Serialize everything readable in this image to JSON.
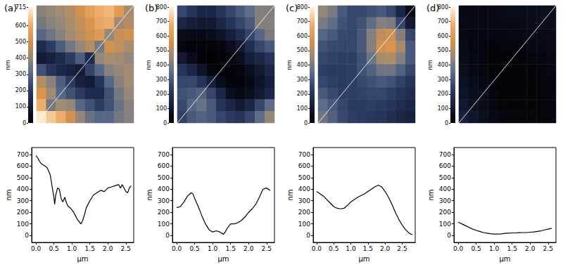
{
  "chart_data": [
    {
      "type": "heatmap",
      "title": "(a)",
      "tick_labels": false,
      "colorbar": {
        "label": "nm",
        "range": [
          0,
          715
        ],
        "ticks": [
          0,
          100,
          200,
          300,
          400,
          500,
          600,
          715
        ]
      },
      "cells": [
        [
          380,
          400,
          420,
          450,
          500,
          560,
          600,
          620,
          540,
          430
        ],
        [
          350,
          380,
          400,
          430,
          470,
          520,
          580,
          600,
          420,
          450
        ],
        [
          300,
          340,
          380,
          420,
          460,
          500,
          540,
          400,
          480,
          500
        ],
        [
          150,
          200,
          280,
          350,
          400,
          450,
          350,
          500,
          470,
          430
        ],
        [
          100,
          120,
          150,
          200,
          280,
          150,
          400,
          430,
          420,
          400
        ],
        [
          250,
          180,
          140,
          120,
          100,
          220,
          300,
          380,
          400,
          420
        ],
        [
          450,
          380,
          280,
          200,
          120,
          100,
          180,
          300,
          380,
          420
        ],
        [
          520,
          420,
          300,
          250,
          200,
          150,
          150,
          250,
          350,
          400
        ],
        [
          600,
          350,
          420,
          400,
          300,
          250,
          200,
          250,
          330,
          380
        ],
        [
          700,
          650,
          600,
          500,
          400,
          330,
          300,
          300,
          350,
          380
        ]
      ]
    },
    {
      "type": "line",
      "xlabel": "µm",
      "ylabel": "nm",
      "color": "#000000",
      "xlim": [
        -0.12,
        2.72
      ],
      "ylim": [
        -60,
        760
      ],
      "xticks": [
        {
          "value": 0,
          "label": "0.0"
        },
        {
          "value": 0.5,
          "label": "0.5"
        },
        {
          "value": 1,
          "label": "1.0"
        },
        {
          "value": 1.5,
          "label": "1.5"
        },
        {
          "value": 2,
          "label": "2.0"
        },
        {
          "value": 2.5,
          "label": "2.5"
        }
      ],
      "yticks": [
        0,
        100,
        200,
        300,
        400,
        500,
        600,
        700
      ],
      "x": [
        0,
        0.05,
        0.1,
        0.15,
        0.2,
        0.25,
        0.3,
        0.35,
        0.4,
        0.45,
        0.5,
        0.52,
        0.55,
        0.6,
        0.65,
        0.7,
        0.75,
        0.8,
        0.85,
        0.9,
        0.95,
        1.0,
        1.05,
        1.1,
        1.15,
        1.2,
        1.25,
        1.3,
        1.35,
        1.4,
        1.5,
        1.6,
        1.7,
        1.8,
        1.9,
        2.0,
        2.1,
        2.2,
        2.3,
        2.35,
        2.4,
        2.5,
        2.55,
        2.6,
        2.65
      ],
      "values": [
        690,
        670,
        640,
        620,
        610,
        600,
        590,
        560,
        520,
        420,
        330,
        270,
        350,
        410,
        400,
        320,
        290,
        330,
        280,
        250,
        240,
        220,
        200,
        170,
        140,
        120,
        100,
        130,
        180,
        240,
        300,
        350,
        370,
        390,
        380,
        410,
        420,
        430,
        440,
        410,
        440,
        380,
        370,
        410,
        430
      ]
    },
    {
      "type": "heatmap",
      "title": "(b)",
      "tick_labels": false,
      "colorbar": {
        "label": "nm",
        "range": [
          0,
          800
        ],
        "ticks": [
          0,
          100,
          200,
          300,
          400,
          500,
          600,
          700,
          800
        ]
      },
      "cells": [
        [
          250,
          200,
          150,
          150,
          200,
          250,
          300,
          350,
          420,
          410
        ],
        [
          150,
          120,
          100,
          100,
          150,
          200,
          250,
          300,
          420,
          420
        ],
        [
          50,
          40,
          40,
          50,
          80,
          120,
          180,
          250,
          330,
          400
        ],
        [
          30,
          20,
          20,
          20,
          30,
          60,
          100,
          180,
          250,
          300
        ],
        [
          100,
          50,
          20,
          10,
          20,
          30,
          60,
          120,
          150,
          200
        ],
        [
          200,
          150,
          80,
          30,
          20,
          20,
          30,
          60,
          100,
          150
        ],
        [
          250,
          250,
          200,
          120,
          50,
          20,
          20,
          40,
          80,
          120
        ],
        [
          280,
          300,
          320,
          250,
          150,
          60,
          40,
          60,
          100,
          150
        ],
        [
          260,
          330,
          370,
          300,
          200,
          150,
          100,
          150,
          250,
          350
        ],
        [
          240,
          300,
          320,
          300,
          250,
          220,
          200,
          250,
          350,
          450
        ]
      ]
    },
    {
      "type": "line",
      "xlabel": "µm",
      "ylabel": "nm",
      "color": "#000000",
      "xlim": [
        -0.12,
        2.72
      ],
      "ylim": [
        -60,
        760
      ],
      "xticks": [
        {
          "value": 0,
          "label": "0.0"
        },
        {
          "value": 0.5,
          "label": "0.5"
        },
        {
          "value": 1,
          "label": "1.0"
        },
        {
          "value": 1.5,
          "label": "1.5"
        },
        {
          "value": 2,
          "label": "2.0"
        },
        {
          "value": 2.5,
          "label": "2.5"
        }
      ],
      "yticks": [
        0,
        100,
        200,
        300,
        400,
        500,
        600,
        700
      ],
      "x": [
        0,
        0.1,
        0.2,
        0.3,
        0.4,
        0.45,
        0.5,
        0.6,
        0.7,
        0.8,
        0.9,
        1.0,
        1.1,
        1.2,
        1.3,
        1.35,
        1.4,
        1.5,
        1.6,
        1.7,
        1.8,
        1.9,
        2.0,
        2.1,
        2.2,
        2.3,
        2.4,
        2.5,
        2.6
      ],
      "values": [
        240,
        250,
        290,
        340,
        370,
        360,
        320,
        250,
        170,
        100,
        50,
        30,
        40,
        30,
        10,
        30,
        60,
        100,
        100,
        110,
        130,
        160,
        200,
        230,
        270,
        330,
        400,
        410,
        390
      ]
    },
    {
      "type": "heatmap",
      "title": "(c)",
      "tick_labels": false,
      "colorbar": {
        "label": "nm",
        "range": [
          0,
          800
        ],
        "ticks": [
          0,
          100,
          200,
          300,
          400,
          500,
          600,
          700,
          800
        ]
      },
      "cells": [
        [
          450,
          400,
          300,
          250,
          250,
          280,
          300,
          250,
          150,
          50
        ],
        [
          400,
          350,
          280,
          250,
          280,
          350,
          420,
          400,
          250,
          100
        ],
        [
          330,
          300,
          260,
          250,
          300,
          420,
          520,
          550,
          420,
          250
        ],
        [
          280,
          260,
          250,
          250,
          300,
          420,
          550,
          580,
          480,
          300
        ],
        [
          250,
          240,
          230,
          230,
          280,
          380,
          480,
          500,
          420,
          300
        ],
        [
          230,
          220,
          220,
          230,
          280,
          320,
          380,
          380,
          320,
          250
        ],
        [
          250,
          230,
          220,
          230,
          260,
          280,
          300,
          280,
          240,
          200
        ],
        [
          300,
          260,
          230,
          230,
          240,
          250,
          250,
          230,
          200,
          170
        ],
        [
          350,
          300,
          250,
          220,
          220,
          230,
          220,
          200,
          170,
          150
        ],
        [
          380,
          320,
          260,
          230,
          220,
          210,
          200,
          180,
          150,
          130
        ]
      ]
    },
    {
      "type": "line",
      "xlabel": "µm",
      "ylabel": "nm",
      "color": "#000000",
      "xlim": [
        -0.1,
        2.88
      ],
      "ylim": [
        -60,
        760
      ],
      "xticks": [
        {
          "value": 0,
          "label": "0.0"
        },
        {
          "value": 0.5,
          "label": "0.5"
        },
        {
          "value": 1,
          "label": "1.0"
        },
        {
          "value": 1.5,
          "label": "1.5"
        },
        {
          "value": 2,
          "label": "2.0"
        },
        {
          "value": 2.5,
          "label": "2.5"
        }
      ],
      "yticks": [
        0,
        100,
        200,
        300,
        400,
        500,
        600,
        700
      ],
      "x": [
        0,
        0.1,
        0.2,
        0.3,
        0.4,
        0.5,
        0.6,
        0.7,
        0.8,
        0.9,
        1.0,
        1.1,
        1.2,
        1.3,
        1.4,
        1.5,
        1.6,
        1.7,
        1.8,
        1.9,
        2.0,
        2.1,
        2.2,
        2.3,
        2.4,
        2.5,
        2.6,
        2.7,
        2.8
      ],
      "values": [
        380,
        360,
        340,
        310,
        280,
        250,
        235,
        230,
        235,
        260,
        290,
        310,
        330,
        345,
        360,
        380,
        400,
        420,
        435,
        420,
        380,
        330,
        270,
        200,
        140,
        90,
        50,
        20,
        5
      ]
    },
    {
      "type": "heatmap",
      "title": "(d)",
      "tick_labels": false,
      "colorbar": {
        "label": "nm",
        "range": [
          0,
          800
        ],
        "ticks": [
          0,
          100,
          200,
          300,
          400,
          500,
          600,
          700,
          800
        ]
      },
      "cells": [
        [
          40,
          40,
          40,
          40,
          45,
          50,
          50,
          55,
          60,
          60
        ],
        [
          40,
          35,
          35,
          35,
          40,
          40,
          45,
          50,
          55,
          55
        ],
        [
          40,
          30,
          30,
          30,
          30,
          35,
          35,
          40,
          45,
          50
        ],
        [
          45,
          30,
          25,
          20,
          25,
          25,
          30,
          35,
          40,
          45
        ],
        [
          50,
          35,
          25,
          15,
          15,
          20,
          20,
          25,
          30,
          40
        ],
        [
          60,
          40,
          30,
          20,
          15,
          15,
          20,
          20,
          25,
          35
        ],
        [
          70,
          50,
          35,
          25,
          20,
          15,
          15,
          20,
          25,
          30
        ],
        [
          80,
          60,
          40,
          30,
          20,
          20,
          20,
          20,
          25,
          30
        ],
        [
          95,
          70,
          50,
          35,
          25,
          20,
          20,
          20,
          25,
          30
        ],
        [
          120,
          90,
          60,
          40,
          30,
          25,
          25,
          25,
          25,
          30
        ]
      ]
    },
    {
      "type": "line",
      "xlabel": "µm",
      "ylabel": "nm",
      "color": "#000000",
      "xlim": [
        -0.12,
        2.72
      ],
      "ylim": [
        -60,
        760
      ],
      "xticks": [
        {
          "value": 0,
          "label": "0.0"
        },
        {
          "value": 0.5,
          "label": "0.5"
        },
        {
          "value": 1,
          "label": "1.0"
        },
        {
          "value": 1.5,
          "label": "1.5"
        },
        {
          "value": 2,
          "label": "2.0"
        },
        {
          "value": 2.5,
          "label": "2.5"
        }
      ],
      "yticks": [
        0,
        100,
        200,
        300,
        400,
        500,
        600,
        700
      ],
      "x": [
        0,
        0.1,
        0.2,
        0.3,
        0.4,
        0.5,
        0.6,
        0.7,
        0.8,
        0.9,
        1.0,
        1.1,
        1.2,
        1.3,
        1.4,
        1.5,
        1.6,
        1.7,
        1.8,
        1.9,
        2.0,
        2.1,
        2.2,
        2.3,
        2.4,
        2.5,
        2.6
      ],
      "values": [
        115,
        100,
        85,
        70,
        55,
        45,
        35,
        25,
        20,
        15,
        12,
        12,
        14,
        18,
        20,
        22,
        22,
        24,
        25,
        25,
        28,
        30,
        35,
        40,
        48,
        55,
        62
      ]
    }
  ]
}
